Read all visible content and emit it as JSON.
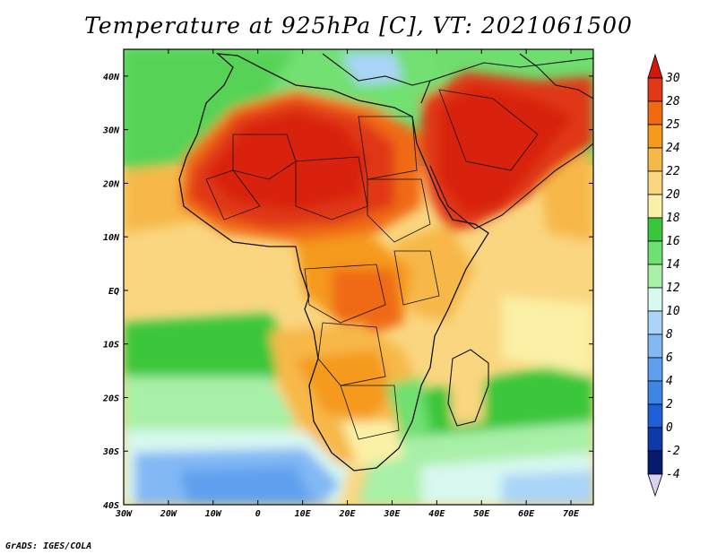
{
  "title": "Temperature at 925hPa [C], VT: 2021061500",
  "credit": "GrADS: IGES/COLA",
  "map": {
    "projection": "latlon",
    "lon_range": [
      -30,
      75
    ],
    "lat_range": [
      -40,
      45
    ],
    "x_ticks": [
      "30W",
      "20W",
      "10W",
      "0",
      "10E",
      "20E",
      "30E",
      "40E",
      "50E",
      "60E",
      "70E"
    ],
    "y_ticks": [
      "40N",
      "30N",
      "20N",
      "10N",
      "EQ",
      "10S",
      "20S",
      "30S",
      "40S"
    ],
    "colorbar_labels": [
      "30",
      "28",
      "25",
      "24",
      "22",
      "20",
      "18",
      "16",
      "14",
      "12",
      "10",
      "8",
      "6",
      "4",
      "2",
      "0",
      "-2",
      "-4"
    ],
    "colorbar_colors": [
      "#e03818",
      "#f06a12",
      "#f59a1a",
      "#f7b84a",
      "#fad680",
      "#fbf0a6",
      "#3ac63a",
      "#70e070",
      "#a8f0a8",
      "#d8f8f0",
      "#aad4f8",
      "#82b8f4",
      "#5ea0ee",
      "#3d86e6",
      "#1e5fd4",
      "#0d3aa8",
      "#061a6e"
    ],
    "top_triangle_color": "#d21a0c",
    "bottom_triangle_color": "#d9d2f2"
  }
}
